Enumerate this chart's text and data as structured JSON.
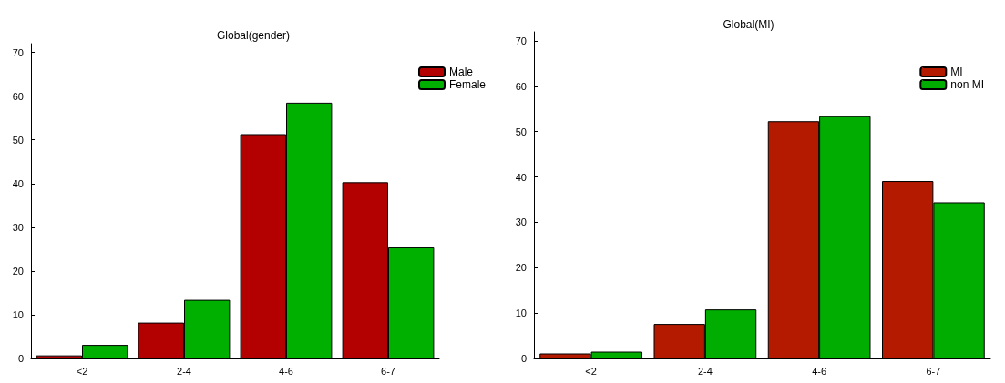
{
  "chart_data": [
    {
      "type": "bar",
      "title": "Global(gender)",
      "categories": [
        "<2",
        "2-4",
        "4-6",
        "6-7"
      ],
      "series": [
        {
          "name": "Male",
          "color": "#b30000",
          "values": [
            0.7,
            8.2,
            51.3,
            40.3
          ]
        },
        {
          "name": "Female",
          "color": "#00b000",
          "values": [
            3.1,
            13.4,
            58.5,
            25.4
          ]
        }
      ],
      "ylim": [
        0,
        72
      ],
      "yticks": [
        0,
        10,
        20,
        30,
        40,
        50,
        60,
        70
      ],
      "grid": false,
      "legend": "top right"
    },
    {
      "type": "bar",
      "title": "Global(MI)",
      "categories": [
        "<2",
        "2-4",
        "4-6",
        "6-7"
      ],
      "series": [
        {
          "name": "MI",
          "color": "#b31a00",
          "values": [
            1.1,
            7.6,
            52.3,
            39.1
          ]
        },
        {
          "name": "non MI",
          "color": "#00ad00",
          "values": [
            1.5,
            10.8,
            53.4,
            34.4
          ]
        }
      ],
      "ylim": [
        0,
        72
      ],
      "yticks": [
        0,
        10,
        20,
        30,
        40,
        50,
        60,
        70
      ],
      "grid": false,
      "legend": "top right"
    }
  ]
}
